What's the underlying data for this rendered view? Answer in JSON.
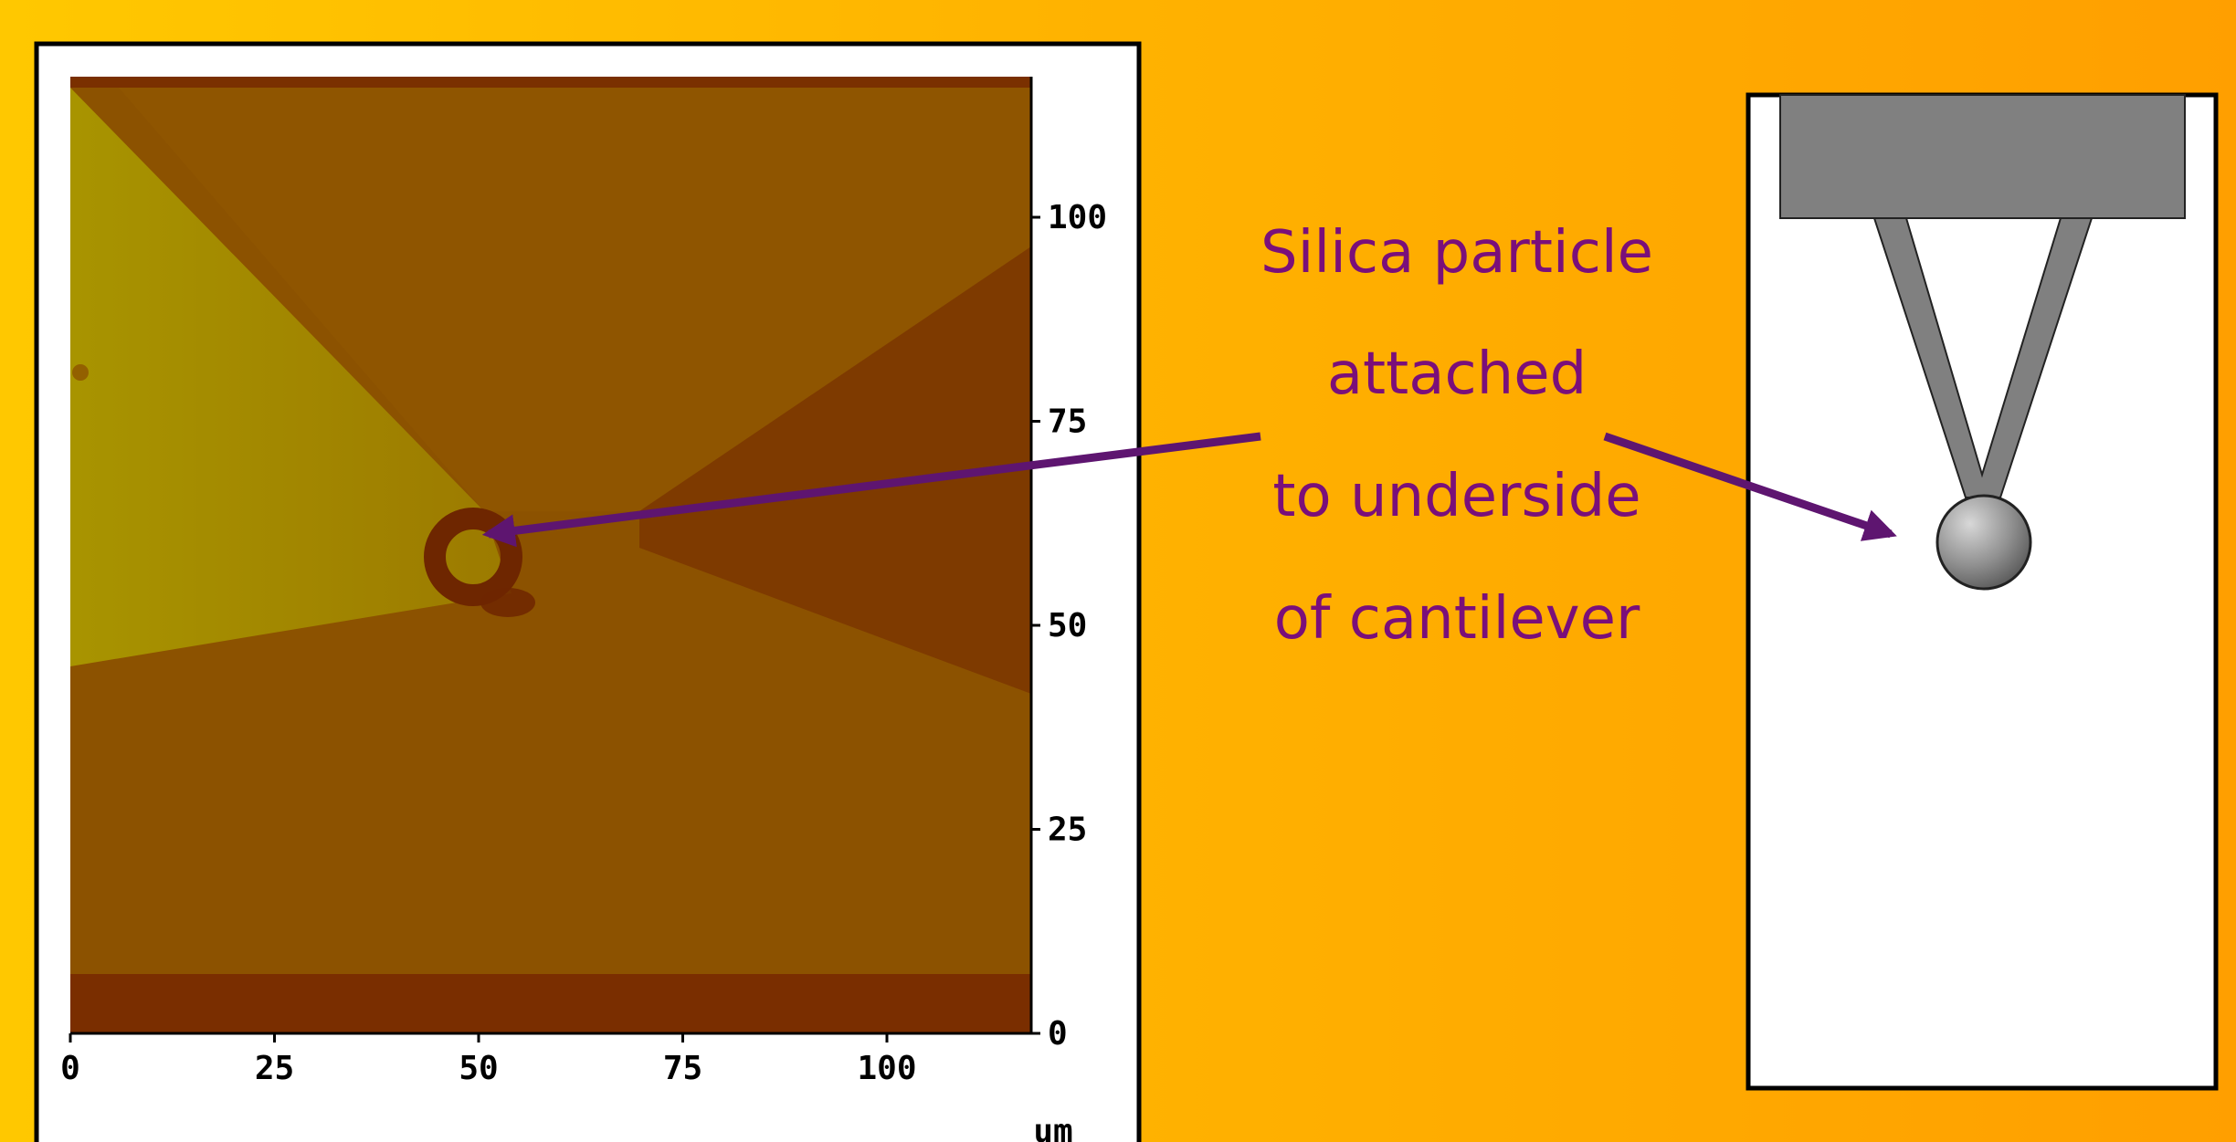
{
  "afm_image": {
    "x_ticks": [
      "0",
      "25",
      "50",
      "75",
      "100"
    ],
    "y_ticks": [
      "0",
      "25",
      "50",
      "75",
      "100"
    ],
    "unit_label": "um",
    "colors": {
      "background": "#8c5200",
      "bright_wedge": "#9a7f00",
      "dark_band": "#7a2e00",
      "particle_ring": "#6e2600"
    }
  },
  "caption": {
    "lines": [
      "Silica particle",
      "attached",
      "to underside",
      "of cantilever"
    ],
    "color": "#7a0f7a"
  },
  "cantilever": {
    "colors": {
      "holder": "#808080",
      "arm": "#808080",
      "sphere": "#9a9a9a"
    }
  },
  "arrows": {
    "color": "#5e1570"
  }
}
